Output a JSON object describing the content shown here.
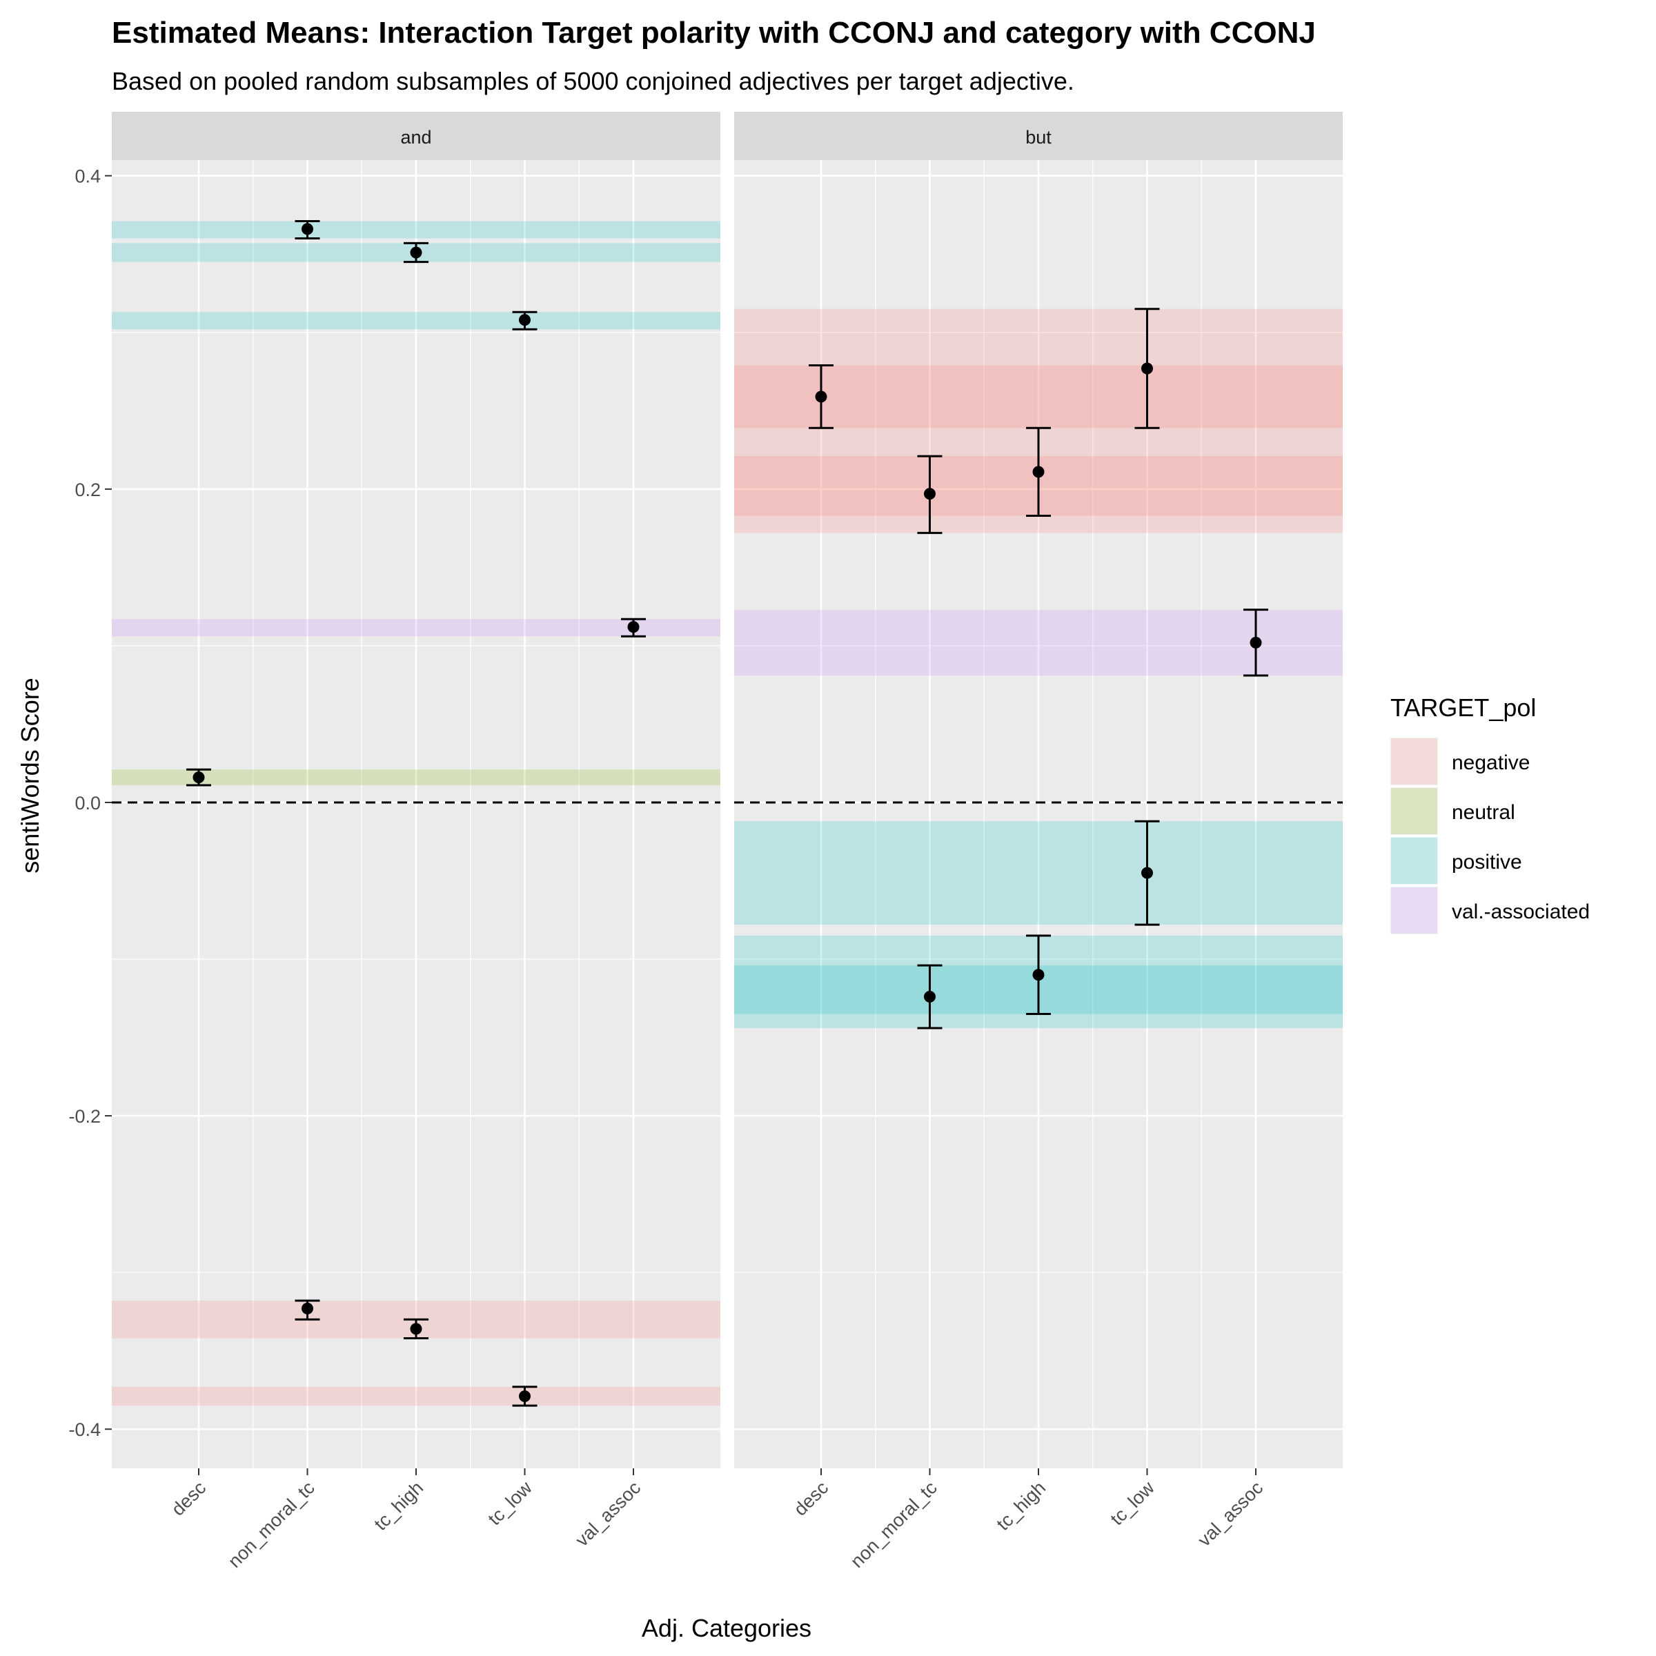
{
  "chart_data": {
    "type": "scatter",
    "title": "Estimated Means: Interaction Target polarity with CCONJ and category with CCONJ",
    "subtitle": "Based on pooled random subsamples of 5000 conjoined adjectives per target adjective.",
    "xlabel": "Adj. Categories",
    "ylabel": "sentiWords Score",
    "categories": [
      "desc",
      "non_moral_tc",
      "tc_high",
      "tc_low",
      "val_assoc"
    ],
    "y_ticks": [
      0.4,
      0.2,
      0.0,
      -0.2,
      -0.4
    ],
    "y_tick_labels": [
      "0.4",
      "0.2",
      "0.0",
      "-0.2",
      "-0.4"
    ],
    "ylim": [
      -0.425,
      0.41
    ],
    "reference_line": {
      "y": 0.0,
      "style": "dashed"
    },
    "grid": true,
    "legend": {
      "title": "TARGET_pol",
      "position": "right",
      "items": [
        {
          "key": "negative",
          "label": "negative",
          "color": "#F8766D"
        },
        {
          "key": "neutral",
          "label": "neutral",
          "color": "#7CAE00"
        },
        {
          "key": "positive",
          "label": "positive",
          "color": "#00BFC4"
        },
        {
          "key": "val_associated",
          "label": "val.-associated",
          "color": "#C77CFF"
        }
      ]
    },
    "facets": [
      {
        "label": "and",
        "points": [
          {
            "category": "desc",
            "polarity": "neutral",
            "y": 0.016,
            "lo": 0.011,
            "hi": 0.021
          },
          {
            "category": "non_moral_tc",
            "polarity": "positive",
            "y": 0.366,
            "lo": 0.36,
            "hi": 0.371
          },
          {
            "category": "non_moral_tc",
            "polarity": "negative",
            "y": -0.323,
            "lo": -0.33,
            "hi": -0.318
          },
          {
            "category": "tc_high",
            "polarity": "positive",
            "y": 0.351,
            "lo": 0.345,
            "hi": 0.357
          },
          {
            "category": "tc_high",
            "polarity": "negative",
            "y": -0.336,
            "lo": -0.342,
            "hi": -0.33
          },
          {
            "category": "tc_low",
            "polarity": "positive",
            "y": 0.308,
            "lo": 0.302,
            "hi": 0.313
          },
          {
            "category": "tc_low",
            "polarity": "negative",
            "y": -0.379,
            "lo": -0.385,
            "hi": -0.373
          },
          {
            "category": "val_assoc",
            "polarity": "val_associated",
            "y": 0.112,
            "lo": 0.106,
            "hi": 0.117
          }
        ]
      },
      {
        "label": "but",
        "points": [
          {
            "category": "desc",
            "polarity": "negative",
            "y": 0.259,
            "lo": 0.239,
            "hi": 0.279
          },
          {
            "category": "non_moral_tc",
            "polarity": "negative",
            "y": 0.197,
            "lo": 0.172,
            "hi": 0.221
          },
          {
            "category": "non_moral_tc",
            "polarity": "positive",
            "y": -0.124,
            "lo": -0.144,
            "hi": -0.104
          },
          {
            "category": "tc_high",
            "polarity": "negative",
            "y": 0.211,
            "lo": 0.183,
            "hi": 0.239
          },
          {
            "category": "tc_high",
            "polarity": "positive",
            "y": -0.11,
            "lo": -0.135,
            "hi": -0.085
          },
          {
            "category": "tc_low",
            "polarity": "negative",
            "y": 0.277,
            "lo": 0.239,
            "hi": 0.315
          },
          {
            "category": "tc_low",
            "polarity": "positive",
            "y": -0.045,
            "lo": -0.078,
            "hi": -0.012
          },
          {
            "category": "val_assoc",
            "polarity": "val_associated",
            "y": 0.102,
            "lo": 0.081,
            "hi": 0.123
          }
        ]
      }
    ]
  }
}
